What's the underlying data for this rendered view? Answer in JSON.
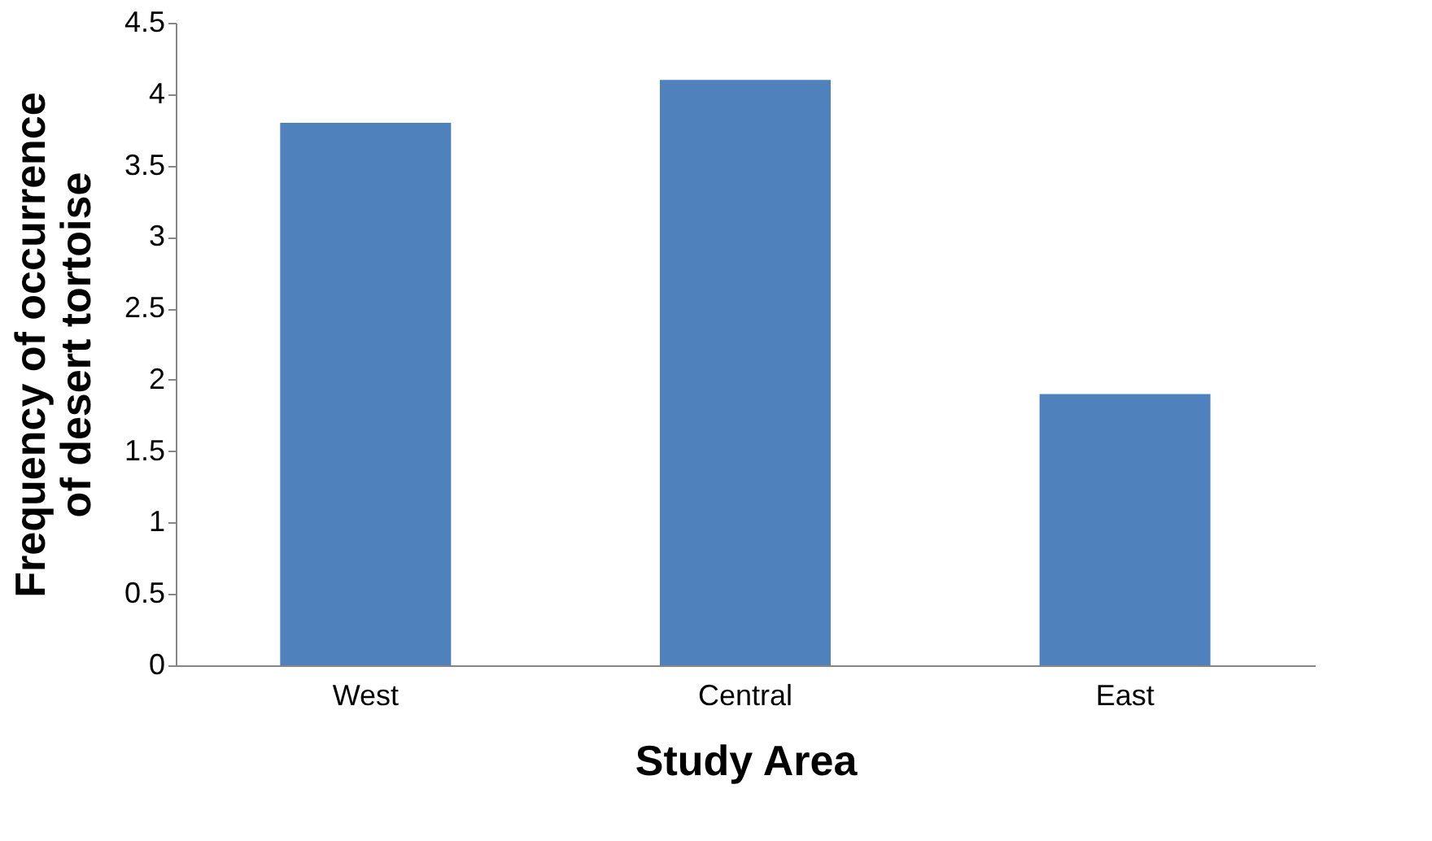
{
  "chart_data": {
    "type": "bar",
    "xlabel": "Study Area",
    "ylabel": "Frequency of occurrence\nof desert tortoise",
    "categories": [
      "West",
      "Central",
      "East"
    ],
    "values": [
      3.8,
      4.1,
      1.9
    ],
    "color": "#4f81bd",
    "ylim": [
      0,
      4.5
    ],
    "yticks": [
      0,
      0.5,
      1,
      1.5,
      2,
      2.5,
      3,
      3.5,
      4,
      4.5
    ],
    "grid": false
  }
}
